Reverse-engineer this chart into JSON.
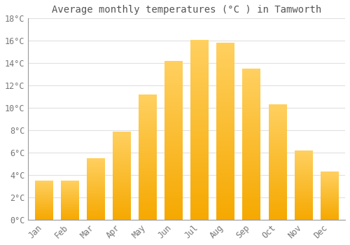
{
  "months": [
    "Jan",
    "Feb",
    "Mar",
    "Apr",
    "May",
    "Jun",
    "Jul",
    "Aug",
    "Sep",
    "Oct",
    "Nov",
    "Dec"
  ],
  "values": [
    3.5,
    3.5,
    5.5,
    7.9,
    11.2,
    14.2,
    16.1,
    15.8,
    13.5,
    10.3,
    6.2,
    4.3
  ],
  "title": "Average monthly temperatures (°C ) in Tamworth",
  "ylim": [
    0,
    18
  ],
  "yticks": [
    0,
    2,
    4,
    6,
    8,
    10,
    12,
    14,
    16,
    18
  ],
  "ytick_labels": [
    "0°C",
    "2°C",
    "4°C",
    "6°C",
    "8°C",
    "10°C",
    "12°C",
    "14°C",
    "16°C",
    "18°C"
  ],
  "bar_color_bottom": "#F5A800",
  "bar_color_top": "#FFD060",
  "background_color": "#FFFFFF",
  "grid_color": "#E0E0E0",
  "title_fontsize": 10,
  "tick_fontsize": 8.5,
  "title_color": "#555555",
  "tick_color": "#777777",
  "bar_width": 0.7
}
